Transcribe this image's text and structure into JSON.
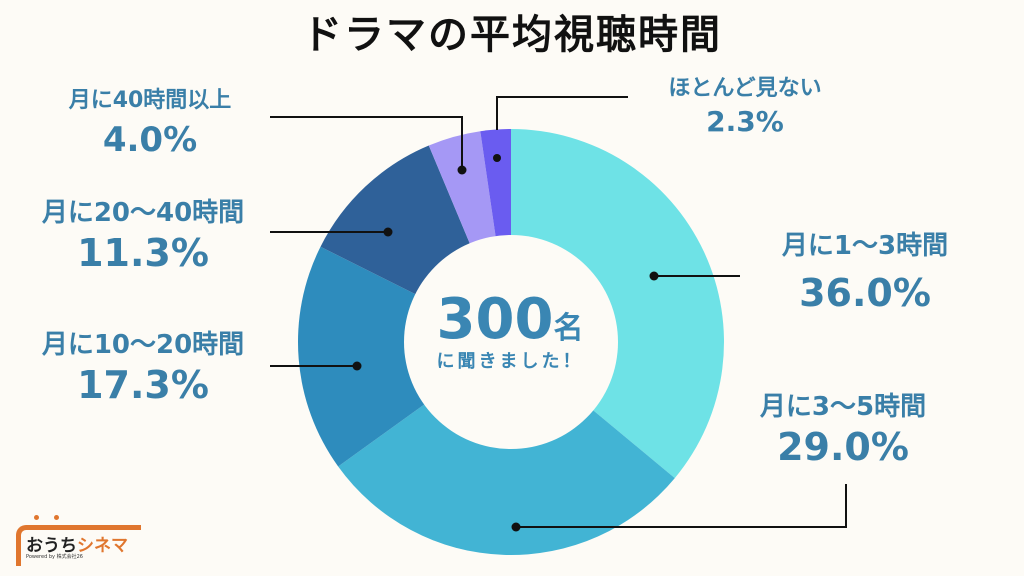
{
  "title": "ドラマの平均視聴時間",
  "center": {
    "count": "300",
    "unit": "名",
    "subtitle": "に聞きました！"
  },
  "labels": {
    "l1": {
      "name": "ほとんど見ない",
      "pct": "2.3%"
    },
    "l2": {
      "name": "月に40時間以上",
      "pct": "4.0%"
    },
    "l3": {
      "name": "月に20〜40時間",
      "pct": "11.3%"
    },
    "l4": {
      "name": "月に10〜20時間",
      "pct": "17.3%"
    },
    "l5": {
      "name": "月に1〜3時間",
      "pct": "36.0%"
    },
    "l6": {
      "name": "月に3〜5時間",
      "pct": "29.0%"
    }
  },
  "logo": {
    "brand_a": "おうち",
    "brand_b": "シネマ",
    "powered": "Powered by 株式会社26"
  },
  "colors": {
    "background": "#fdfbf6",
    "label_text": "#3a7fa8",
    "slice_1_3": "#6ee2e6",
    "slice_3_5": "#42b4d4",
    "slice_10_20": "#2e8cbd",
    "slice_20_40": "#2f6199",
    "slice_40_plus": "#a598f5",
    "slice_rarely": "#6a5cf0"
  },
  "chart_data": {
    "type": "pie",
    "title": "ドラマの平均視聴時間",
    "donut": true,
    "center_label": "300名に聞きました！",
    "categories": [
      "月に1〜3時間",
      "月に3〜5時間",
      "月に10〜20時間",
      "月に20〜40時間",
      "月に40時間以上",
      "ほとんど見ない"
    ],
    "values": [
      36.0,
      29.0,
      17.3,
      11.3,
      4.0,
      2.3
    ],
    "unit": "%",
    "colors": [
      "#6ee2e6",
      "#42b4d4",
      "#2e8cbd",
      "#2f6199",
      "#a598f5",
      "#6a5cf0"
    ],
    "start_angle": "12 o'clock, clockwise"
  }
}
